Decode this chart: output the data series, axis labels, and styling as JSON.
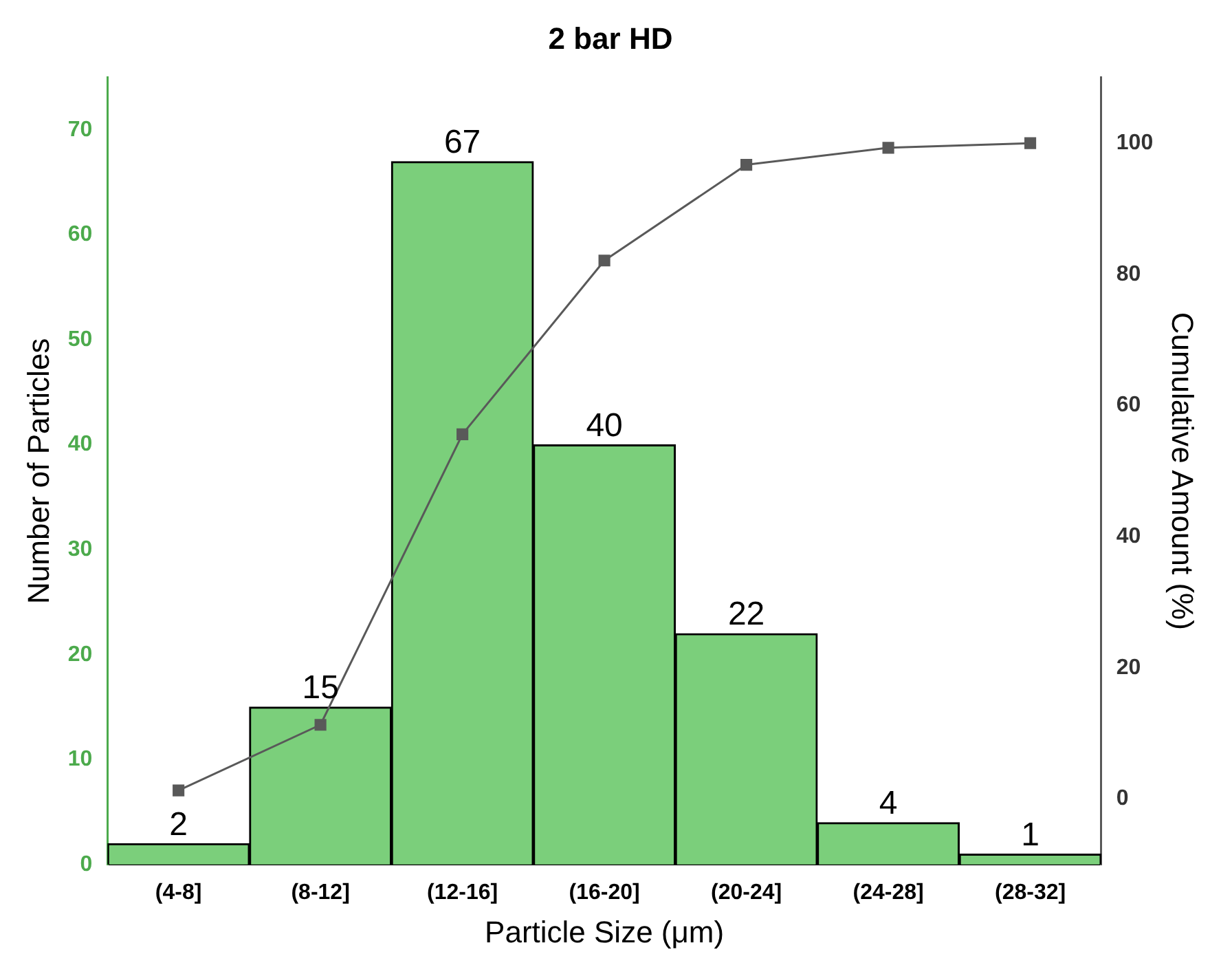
{
  "chart_data": {
    "type": "bar",
    "title": "2 bar HD",
    "xlabel": "Particle Size (μm)",
    "ylabel": "Number of Particles",
    "y2label": "Cumulative Amount (%)",
    "categories": [
      "(4-8]",
      "(8-12]",
      "(12-16]",
      "(16-20]",
      "(20-24]",
      "(24-28]",
      "(28-32]"
    ],
    "series": [
      {
        "color": "#7bcf7b",
        "values": [
          2,
          15,
          67,
          40,
          22,
          4,
          1
        ],
        "value_labels": [
          "2",
          "15",
          "67",
          "40",
          "22",
          "4",
          "1"
        ]
      },
      {
        "type": "line",
        "axis": "y2",
        "color": "#595959",
        "values": [
          1.3,
          11.3,
          55.6,
          82.1,
          96.7,
          99.3,
          100
        ]
      }
    ],
    "ylim": [
      0,
      75
    ],
    "yticks": [
      0,
      10,
      20,
      30,
      40,
      50,
      60,
      70
    ],
    "y2lim": [
      -10,
      110
    ],
    "y2ticks": [
      0,
      20,
      40,
      60,
      80,
      100
    ],
    "grid": false,
    "legend": false,
    "marker": "square",
    "line_style": "solid"
  }
}
